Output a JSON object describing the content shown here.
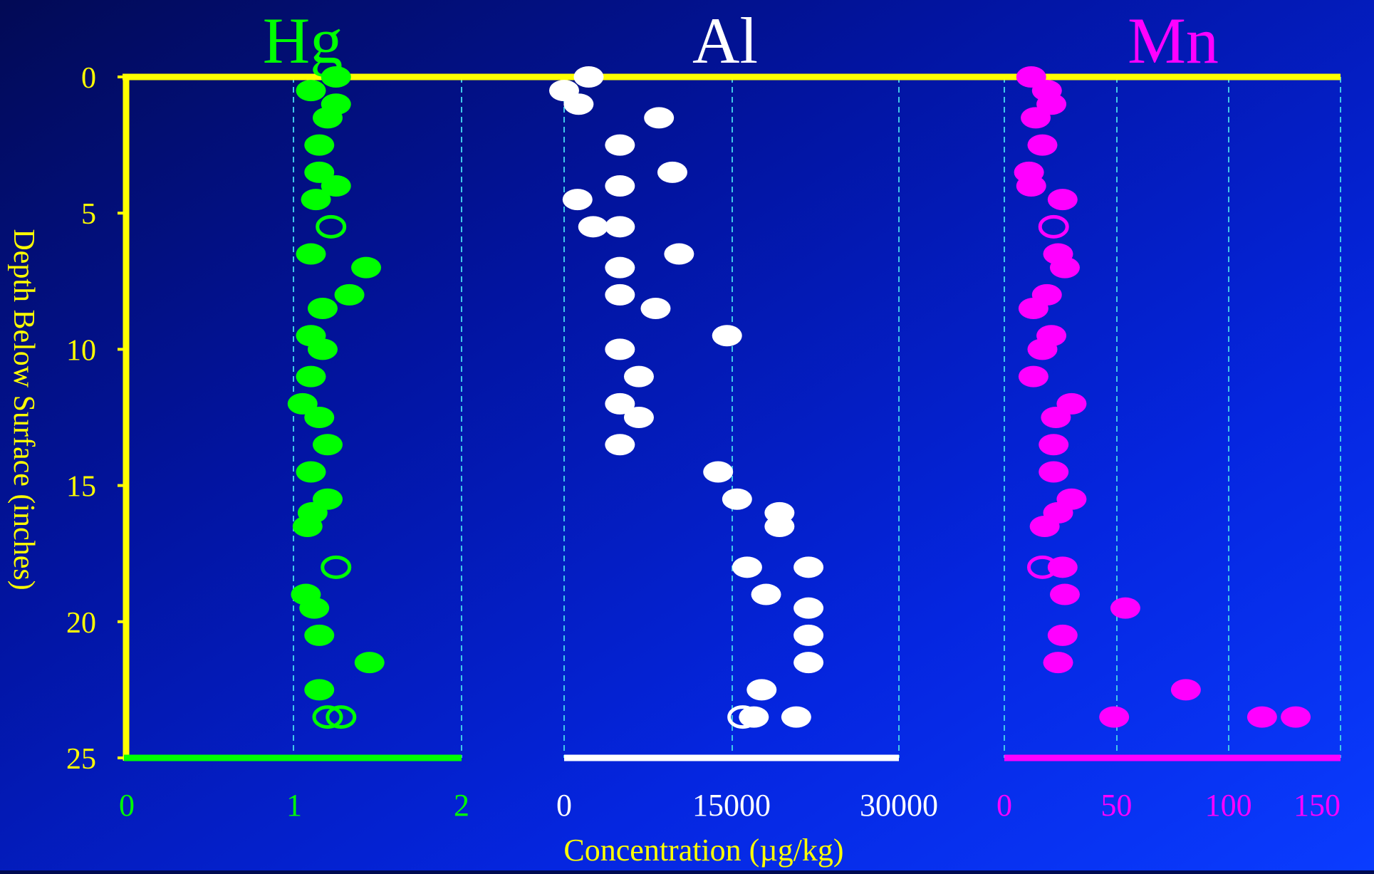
{
  "colors": {
    "axis": "#ffff00",
    "grid": "#40c8e8",
    "hg": "#00ff00",
    "al": "#ffffff",
    "mn": "#ff00ff",
    "bg_dark": "#020a55",
    "bg_light": "#0a3cff"
  },
  "chart_data": {
    "type": "scatter",
    "ylabel": "Depth Below Surface (inches)",
    "xlabel": "Concentration (µg/kg)",
    "ylim": [
      0,
      25
    ],
    "y_inverted": true,
    "y_ticks": [
      "0",
      "5",
      "10",
      "15",
      "20",
      "25"
    ],
    "y_tick_values": [
      0,
      5,
      10,
      15,
      20,
      25
    ],
    "grid": "dashed vertical lines in each panel",
    "panels": [
      {
        "name": "Hg",
        "color": "#00ff00",
        "xlim": [
          0,
          2
        ],
        "x_ticks": [
          "0",
          "1",
          "2"
        ],
        "x_tick_values": [
          0,
          1,
          2
        ],
        "points": [
          {
            "x": 1.25,
            "y": 0
          },
          {
            "x": 1.1,
            "y": 0.5
          },
          {
            "x": 1.25,
            "y": 1
          },
          {
            "x": 1.2,
            "y": 1.5
          },
          {
            "x": 1.15,
            "y": 2.5
          },
          {
            "x": 1.15,
            "y": 3.5
          },
          {
            "x": 1.25,
            "y": 4
          },
          {
            "x": 1.13,
            "y": 4.5
          },
          {
            "x": 1.22,
            "y": 5.5,
            "hollow": true
          },
          {
            "x": 1.1,
            "y": 6.5
          },
          {
            "x": 1.43,
            "y": 7
          },
          {
            "x": 1.33,
            "y": 8
          },
          {
            "x": 1.17,
            "y": 8.5
          },
          {
            "x": 1.1,
            "y": 9.5
          },
          {
            "x": 1.17,
            "y": 10
          },
          {
            "x": 1.1,
            "y": 11
          },
          {
            "x": 1.05,
            "y": 12
          },
          {
            "x": 1.15,
            "y": 12.5
          },
          {
            "x": 1.2,
            "y": 13.5
          },
          {
            "x": 1.1,
            "y": 14.5
          },
          {
            "x": 1.2,
            "y": 15.5
          },
          {
            "x": 1.11,
            "y": 16
          },
          {
            "x": 1.08,
            "y": 16.5
          },
          {
            "x": 1.25,
            "y": 18,
            "hollow": true
          },
          {
            "x": 1.07,
            "y": 19
          },
          {
            "x": 1.12,
            "y": 19.5
          },
          {
            "x": 1.15,
            "y": 20.5
          },
          {
            "x": 1.45,
            "y": 21.5
          },
          {
            "x": 1.15,
            "y": 22.5
          },
          {
            "x": 1.2,
            "y": 23.5,
            "hollow": true
          },
          {
            "x": 1.28,
            "y": 23.5,
            "hollow": true
          }
        ]
      },
      {
        "name": "Al",
        "color": "#ffffff",
        "xlim": [
          0,
          30000
        ],
        "x_ticks": [
          "0",
          "15000",
          "30000"
        ],
        "x_tick_values": [
          0,
          15000,
          30000
        ],
        "points": [
          {
            "x": 2200,
            "y": 0
          },
          {
            "x": 0,
            "y": 0.5
          },
          {
            "x": 1300,
            "y": 1
          },
          {
            "x": 8500,
            "y": 1.5
          },
          {
            "x": 5000,
            "y": 2.5
          },
          {
            "x": 9700,
            "y": 3.5
          },
          {
            "x": 5000,
            "y": 4
          },
          {
            "x": 1200,
            "y": 4.5
          },
          {
            "x": 2600,
            "y": 5.5
          },
          {
            "x": 5000,
            "y": 5.5
          },
          {
            "x": 10300,
            "y": 6.5
          },
          {
            "x": 5000,
            "y": 7
          },
          {
            "x": 5000,
            "y": 8
          },
          {
            "x": 8200,
            "y": 8.5
          },
          {
            "x": 14600,
            "y": 9.5
          },
          {
            "x": 5000,
            "y": 10
          },
          {
            "x": 6700,
            "y": 11
          },
          {
            "x": 5000,
            "y": 12
          },
          {
            "x": 6700,
            "y": 12.5
          },
          {
            "x": 5000,
            "y": 13.5
          },
          {
            "x": 13800,
            "y": 14.5
          },
          {
            "x": 15500,
            "y": 15.5
          },
          {
            "x": 19300,
            "y": 16
          },
          {
            "x": 19300,
            "y": 16.5
          },
          {
            "x": 16400,
            "y": 18
          },
          {
            "x": 21900,
            "y": 18
          },
          {
            "x": 18100,
            "y": 19
          },
          {
            "x": 21900,
            "y": 19.5
          },
          {
            "x": 21900,
            "y": 20.5
          },
          {
            "x": 21900,
            "y": 21.5
          },
          {
            "x": 17700,
            "y": 22.5
          },
          {
            "x": 16000,
            "y": 23.5,
            "hollow": true
          },
          {
            "x": 17000,
            "y": 23.5
          },
          {
            "x": 20800,
            "y": 23.5
          }
        ]
      },
      {
        "name": "Mn",
        "color": "#ff00ff",
        "xlim": [
          0,
          150
        ],
        "x_ticks": [
          "0",
          "50",
          "100",
          "150"
        ],
        "x_tick_values": [
          0,
          50,
          100,
          150
        ],
        "points": [
          {
            "x": 12,
            "y": 0
          },
          {
            "x": 19,
            "y": 0.5
          },
          {
            "x": 21,
            "y": 1
          },
          {
            "x": 14,
            "y": 1.5
          },
          {
            "x": 17,
            "y": 2.5
          },
          {
            "x": 11,
            "y": 3.5
          },
          {
            "x": 12,
            "y": 4
          },
          {
            "x": 26,
            "y": 4.5
          },
          {
            "x": 22,
            "y": 5.5,
            "hollow": true
          },
          {
            "x": 24,
            "y": 6.5
          },
          {
            "x": 27,
            "y": 7
          },
          {
            "x": 19,
            "y": 8
          },
          {
            "x": 13,
            "y": 8.5
          },
          {
            "x": 21,
            "y": 9.5
          },
          {
            "x": 17,
            "y": 10
          },
          {
            "x": 13,
            "y": 11
          },
          {
            "x": 30,
            "y": 12
          },
          {
            "x": 23,
            "y": 12.5
          },
          {
            "x": 22,
            "y": 13.5
          },
          {
            "x": 22,
            "y": 14.5
          },
          {
            "x": 30,
            "y": 15.5
          },
          {
            "x": 24,
            "y": 16
          },
          {
            "x": 18,
            "y": 16.5
          },
          {
            "x": 17,
            "y": 18,
            "hollow": true
          },
          {
            "x": 26,
            "y": 18
          },
          {
            "x": 27,
            "y": 19
          },
          {
            "x": 54,
            "y": 19.5
          },
          {
            "x": 26,
            "y": 20.5
          },
          {
            "x": 24,
            "y": 21.5
          },
          {
            "x": 81,
            "y": 22.5
          },
          {
            "x": 49,
            "y": 23.5
          },
          {
            "x": 115,
            "y": 23.5
          },
          {
            "x": 130,
            "y": 23.5
          }
        ]
      }
    ]
  }
}
